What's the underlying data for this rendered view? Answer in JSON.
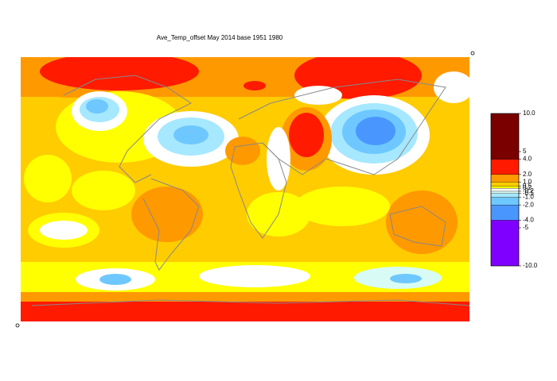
{
  "title": "Ave_Temp_offset May 2014  base 1951 1980",
  "colorbar": {
    "bins": [
      -10,
      -4,
      -2,
      -1,
      -0.5,
      -0.2,
      0.2,
      0.5,
      1,
      2,
      4,
      10
    ],
    "colors": [
      "#8000ff",
      "#4a96ff",
      "#6ec8ff",
      "#a6e8ff",
      "#d8fbf6",
      "#ffffff",
      "#ffff00",
      "#ffcc00",
      "#ff9900",
      "#ff1a00",
      "#7a0000"
    ],
    "ylim": [
      -10,
      10
    ],
    "yticks": [
      {
        "value": 10,
        "label": "10.0"
      },
      5,
      {
        "value": 4,
        "label": "4.0"
      },
      {
        "value": 2,
        "label": "2.0"
      },
      {
        "value": 1,
        "label": "1.0"
      },
      0.5,
      0.2,
      -0.2,
      -0.5,
      {
        "value": -1,
        "label": "-1.0"
      },
      {
        "value": -2,
        "label": "-2.0"
      },
      {
        "value": -4,
        "label": "-4.0"
      },
      -5,
      {
        "value": -10,
        "label": "-10.0"
      }
    ]
  }
}
